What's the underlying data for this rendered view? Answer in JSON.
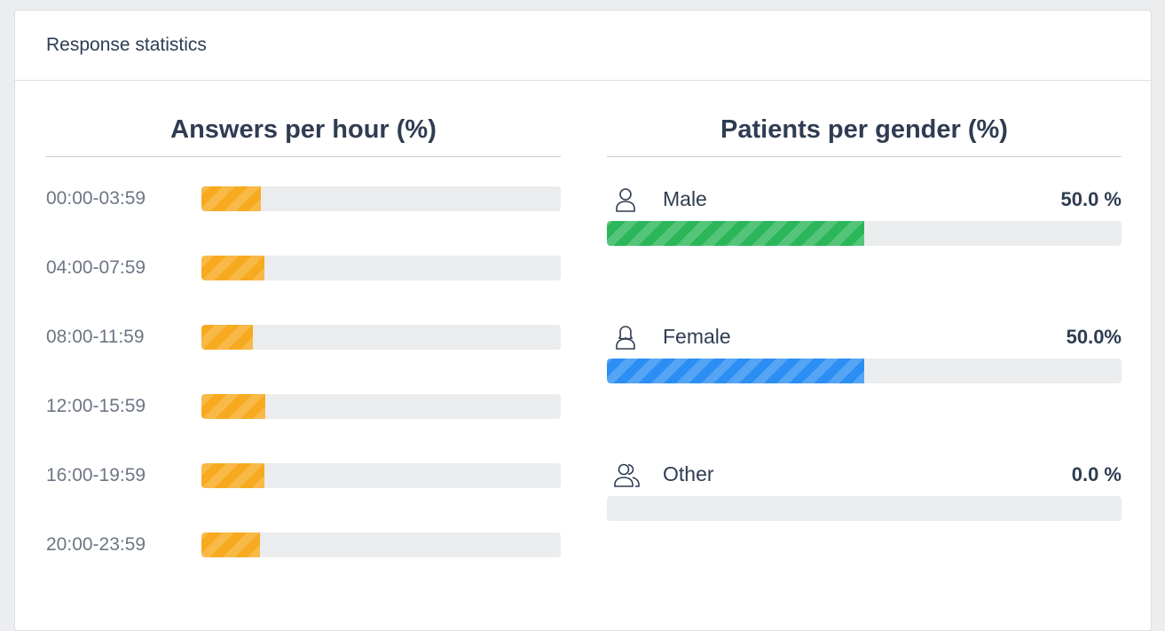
{
  "card": {
    "title": "Response statistics"
  },
  "answers_per_hour": {
    "title": "Answers per hour (%)",
    "bar_color": "#f7aa1f",
    "rows": [
      {
        "label": "00:00-03:59",
        "fraction": 0.165
      },
      {
        "label": "04:00-07:59",
        "fraction": 0.175
      },
      {
        "label": "08:00-11:59",
        "fraction": 0.143
      },
      {
        "label": "12:00-15:59",
        "fraction": 0.178
      },
      {
        "label": "16:00-19:59",
        "fraction": 0.175
      },
      {
        "label": "20:00-23:59",
        "fraction": 0.163
      }
    ]
  },
  "patients_per_gender": {
    "title": "Patients per gender (%)",
    "rows": [
      {
        "label": "Male",
        "value_text": "50.0 %",
        "fraction": 0.5,
        "icon": "male-user-icon",
        "color": "#2ab659"
      },
      {
        "label": "Female",
        "value_text": "50.0%",
        "fraction": 0.5,
        "icon": "female-user-icon",
        "color": "#2b8ef3"
      },
      {
        "label": "Other",
        "value_text": "0.0 %",
        "fraction": 0.0,
        "icon": "users-group-icon",
        "color": "#9aa1ab"
      }
    ]
  }
}
